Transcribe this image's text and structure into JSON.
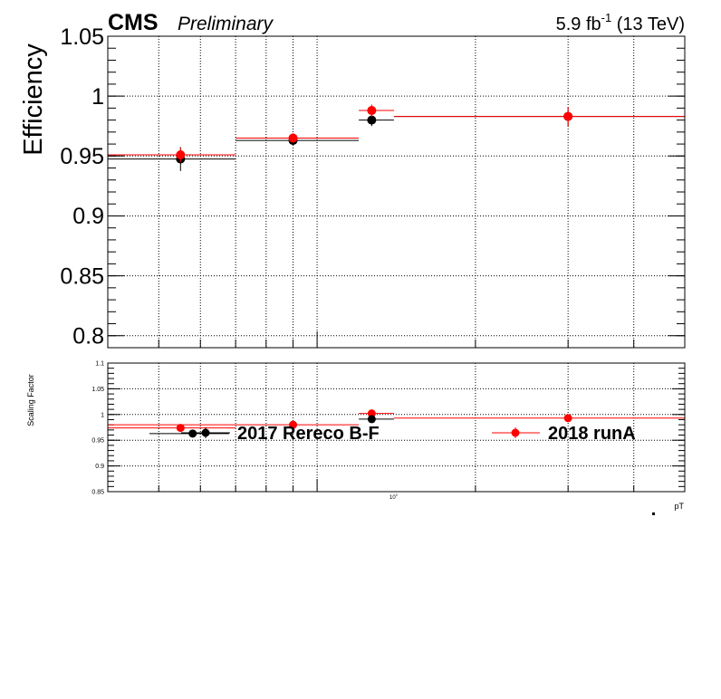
{
  "header": {
    "experiment": "CMS",
    "status": "Preliminary",
    "lumi_prefix": "5.9 fb",
    "lumi_exponent": "-1",
    "lumi_suffix": " (13 TeV)"
  },
  "colors": {
    "series_2017": "#000000",
    "series_2018": "#ff0000",
    "grid": "#000000",
    "axis": "#000000"
  },
  "chart_data": [
    {
      "type": "scatter",
      "panel": "top",
      "ylabel": "Efficiency",
      "ylim": [
        0.79,
        1.05
      ],
      "yticks": [
        "0.8",
        "0.85",
        "0.9",
        "0.95",
        "1",
        "1.05"
      ],
      "xscale": "log",
      "xlim": [
        40,
        500
      ],
      "grid": true,
      "series": [
        {
          "name": "2017 Rereco B-F",
          "points": [
            {
              "x": 55,
              "xlow": 40,
              "xhigh": 70,
              "y": 0.9475,
              "yerr": 0.01
            },
            {
              "x": 90,
              "xlow": 70,
              "xhigh": 120,
              "y": 0.963,
              "yerr": 0.004
            },
            {
              "x": 127,
              "xlow": 120,
              "xhigh": 140,
              "y": 0.98,
              "yerr": 0.005
            },
            {
              "x": 300,
              "xlow": 140,
              "xhigh": 500,
              "y": 0.983,
              "yerr": 0.008
            }
          ]
        },
        {
          "name": "2018 runA",
          "points": [
            {
              "x": 55,
              "xlow": 40,
              "xhigh": 70,
              "y": 0.951,
              "yerr": 0.006
            },
            {
              "x": 90,
              "xlow": 70,
              "xhigh": 120,
              "y": 0.965,
              "yerr": 0.004
            },
            {
              "x": 127,
              "xlow": 120,
              "xhigh": 140,
              "y": 0.988,
              "yerr": 0.005
            },
            {
              "x": 300,
              "xlow": 140,
              "xhigh": 500,
              "y": 0.983,
              "yerr": 0.008
            }
          ]
        }
      ]
    },
    {
      "type": "scatter",
      "panel": "bottom",
      "ylabel": "Scaling Factor",
      "xlabel": "pT",
      "ylim": [
        0.85,
        1.1
      ],
      "yticks": [
        "0.85",
        "0.9",
        "0.95",
        "1",
        "1.05",
        "1.1"
      ],
      "xscale": "log",
      "xlim": [
        40,
        500
      ],
      "xtick_label_base": "10",
      "xtick_label_exp": "2",
      "grid": true,
      "legend_entries": [
        "2017 Rereco B-F",
        "2018 runA"
      ],
      "series": [
        {
          "name": "2017 Rereco B-F",
          "points": [
            {
              "x": 58,
              "xlow": 48,
              "xhigh": 68,
              "y": 0.963,
              "yerr": 0.002
            }
          ]
        },
        {
          "name": "2018 runA",
          "points": [
            {
              "x": 55,
              "xlow": 40,
              "xhigh": 70,
              "y": 0.974,
              "yerr": 0.006
            },
            {
              "x": 90,
              "xlow": 40,
              "xhigh": 120,
              "y": 0.98,
              "yerr": 0.004
            },
            {
              "x": 127,
              "xlow": 120,
              "xhigh": 140,
              "y": 1.002,
              "yerr": 0.005
            },
            {
              "x": 300,
              "xlow": 140,
              "xhigh": 520,
              "y": 0.993,
              "yerr": 0.006
            }
          ]
        },
        {
          "name": "",
          "points": [
            {
              "x": 127,
              "xlow": 120,
              "xhigh": 140,
              "y": 0.991,
              "yerr": 0.003
            }
          ]
        }
      ]
    }
  ]
}
